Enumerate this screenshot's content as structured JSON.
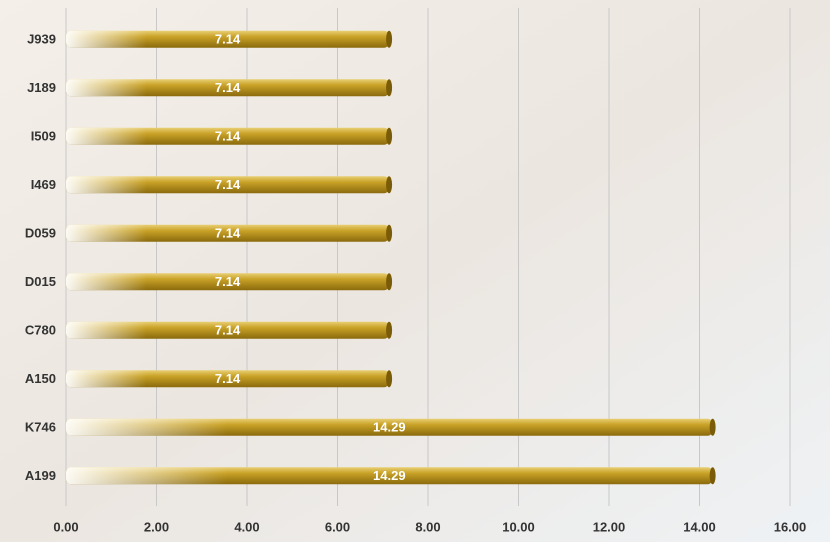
{
  "chart_data": {
    "type": "bar",
    "orientation": "horizontal",
    "categories": [
      "J939",
      "J189",
      "I509",
      "I469",
      "D059",
      "D015",
      "C780",
      "A150",
      "K746",
      "A199"
    ],
    "values": [
      7.14,
      7.14,
      7.14,
      7.14,
      7.14,
      7.14,
      7.14,
      7.14,
      14.29,
      14.29
    ],
    "color": "#c9a227",
    "xlim": [
      0,
      16
    ],
    "xticks": [
      {
        "value": 0,
        "label": "0.00"
      },
      {
        "value": 2,
        "label": "2.00"
      },
      {
        "value": 4,
        "label": "4.00"
      },
      {
        "value": 6,
        "label": "6.00"
      },
      {
        "value": 8,
        "label": "8.00"
      },
      {
        "value": 10,
        "label": "10.00"
      },
      {
        "value": 12,
        "label": "12.00"
      },
      {
        "value": 14,
        "label": "14.00"
      },
      {
        "value": 16,
        "label": "16.00"
      }
    ],
    "grid": true
  }
}
